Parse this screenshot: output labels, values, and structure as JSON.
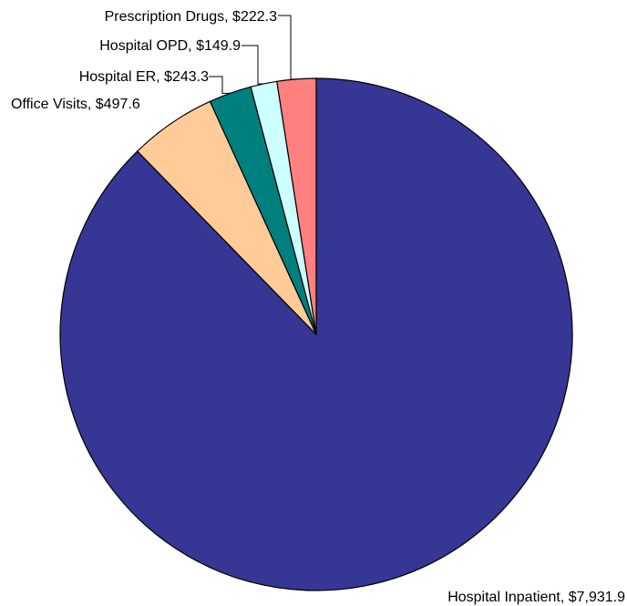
{
  "chart_data": {
    "type": "pie",
    "title": "",
    "start_angle_deg": 0,
    "direction": "clockwise",
    "slices": [
      {
        "label": "Hospital Inpatient",
        "value": 7931.9,
        "display": "$7,931.9",
        "color": "#363694"
      },
      {
        "label": "Office Visits",
        "value": 497.6,
        "display": "$497.6",
        "color": "#FFCC99"
      },
      {
        "label": "Hospital ER",
        "value": 243.3,
        "display": "$243.3",
        "color": "#007F7F"
      },
      {
        "label": "Hospital OPD",
        "value": 149.9,
        "display": "$149.9",
        "color": "#CCFFFF"
      },
      {
        "label": "Prescription Drugs",
        "value": 222.3,
        "display": "$222.3",
        "color": "#FF8080"
      }
    ]
  }
}
